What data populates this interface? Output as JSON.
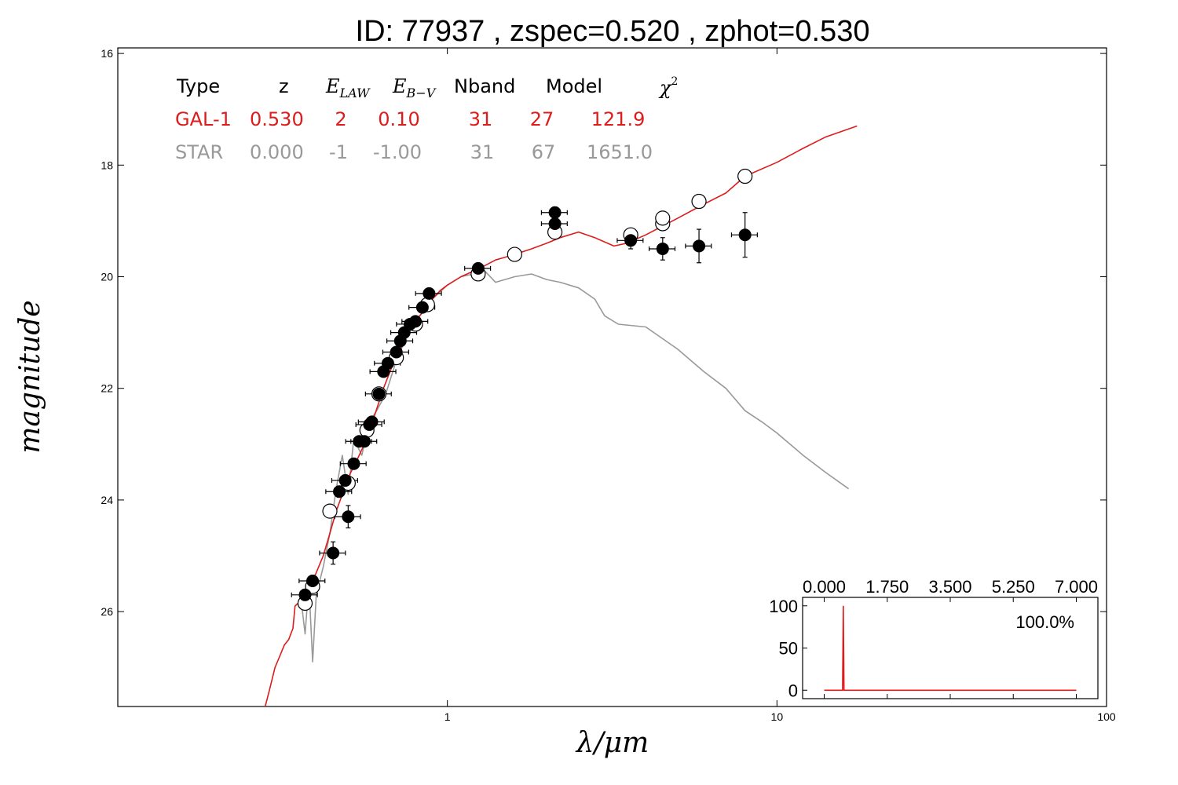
{
  "chart_data": {
    "type": "scatter",
    "title": "ID:  77937 , zspec=0.520 , zphot=0.530",
    "xlabel": "λ/μm",
    "ylabel": "magnitude",
    "x_scale": "log",
    "xlim": [
      0.1,
      100
    ],
    "ylim": [
      27.7,
      15.9
    ],
    "y_inverted": true,
    "x_ticks": [
      {
        "v": 1,
        "label": "1"
      },
      {
        "v": 10,
        "label": "10"
      },
      {
        "v": 100,
        "label": "100"
      }
    ],
    "y_ticks": [
      {
        "v": 16,
        "label": "16"
      },
      {
        "v": 18,
        "label": "18"
      },
      {
        "v": 20,
        "label": "20"
      },
      {
        "v": 22,
        "label": "22"
      },
      {
        "v": 24,
        "label": "24"
      },
      {
        "v": 26,
        "label": "26"
      }
    ],
    "table": {
      "headers": [
        "Type",
        "z",
        "E_LAW",
        "E_B−V",
        "Nband",
        "Model",
        "χ²"
      ],
      "rows": [
        {
          "name": "GAL-1",
          "color": "#dd1c1c",
          "cells": [
            "GAL-1",
            "0.530",
            "2",
            "0.10",
            "31",
            "27",
            "121.9"
          ]
        },
        {
          "name": "STAR",
          "color": "#999999",
          "cells": [
            "STAR",
            "0.000",
            "-1",
            "-1.00",
            "31",
            "67",
            "1651.0"
          ]
        }
      ]
    },
    "series": [
      {
        "name": "GAL-1",
        "kind": "line",
        "color": "#dd1c1c",
        "points": [
          [
            0.28,
            27.7
          ],
          [
            0.29,
            27.35
          ],
          [
            0.3,
            27.0
          ],
          [
            0.31,
            26.8
          ],
          [
            0.32,
            26.6
          ],
          [
            0.33,
            26.5
          ],
          [
            0.34,
            26.3
          ],
          [
            0.345,
            25.9
          ],
          [
            0.36,
            25.8
          ],
          [
            0.37,
            25.75
          ],
          [
            0.38,
            25.6
          ],
          [
            0.4,
            25.3
          ],
          [
            0.42,
            25.0
          ],
          [
            0.44,
            24.6
          ],
          [
            0.46,
            24.2
          ],
          [
            0.48,
            23.9
          ],
          [
            0.5,
            23.6
          ],
          [
            0.53,
            23.3
          ],
          [
            0.56,
            23.0
          ],
          [
            0.6,
            22.5
          ],
          [
            0.64,
            22.0
          ],
          [
            0.68,
            21.6
          ],
          [
            0.72,
            21.3
          ],
          [
            0.76,
            21.0
          ],
          [
            0.8,
            20.8
          ],
          [
            0.85,
            20.6
          ],
          [
            0.9,
            20.4
          ],
          [
            0.95,
            20.25
          ],
          [
            1.0,
            20.15
          ],
          [
            1.1,
            20.0
          ],
          [
            1.2,
            19.9
          ],
          [
            1.3,
            19.8
          ],
          [
            1.4,
            19.7
          ],
          [
            1.6,
            19.6
          ],
          [
            1.8,
            19.5
          ],
          [
            2.0,
            19.4
          ],
          [
            2.2,
            19.3
          ],
          [
            2.5,
            19.2
          ],
          [
            2.8,
            19.3
          ],
          [
            3.2,
            19.45
          ],
          [
            3.5,
            19.4
          ],
          [
            4.0,
            19.25
          ],
          [
            5.0,
            18.95
          ],
          [
            6.0,
            18.7
          ],
          [
            7.0,
            18.5
          ],
          [
            8.0,
            18.2
          ],
          [
            10.0,
            17.95
          ],
          [
            12.0,
            17.7
          ],
          [
            14.0,
            17.5
          ],
          [
            17.5,
            17.3
          ]
        ]
      },
      {
        "name": "STAR",
        "kind": "line",
        "color": "#999999",
        "points": [
          [
            0.36,
            25.8
          ],
          [
            0.37,
            26.4
          ],
          [
            0.38,
            25.5
          ],
          [
            0.39,
            26.9
          ],
          [
            0.4,
            25.7
          ],
          [
            0.42,
            25.2
          ],
          [
            0.44,
            24.6
          ],
          [
            0.46,
            23.8
          ],
          [
            0.48,
            23.2
          ],
          [
            0.5,
            23.9
          ],
          [
            0.52,
            22.9
          ],
          [
            0.55,
            23.2
          ],
          [
            0.58,
            22.6
          ],
          [
            0.61,
            22.4
          ],
          [
            0.65,
            22.1
          ],
          [
            0.7,
            21.5
          ],
          [
            0.75,
            21.1
          ],
          [
            0.8,
            20.8
          ],
          [
            0.85,
            20.6
          ],
          [
            0.9,
            20.4
          ],
          [
            1.0,
            20.15
          ],
          [
            1.1,
            20.0
          ],
          [
            1.2,
            19.95
          ],
          [
            1.3,
            19.9
          ],
          [
            1.4,
            20.1
          ],
          [
            1.6,
            20.0
          ],
          [
            1.8,
            19.95
          ],
          [
            2.0,
            20.05
          ],
          [
            2.2,
            20.1
          ],
          [
            2.5,
            20.2
          ],
          [
            2.8,
            20.4
          ],
          [
            3.0,
            20.7
          ],
          [
            3.3,
            20.85
          ],
          [
            4.0,
            20.9
          ],
          [
            5.0,
            21.3
          ],
          [
            6.0,
            21.7
          ],
          [
            7.0,
            22.0
          ],
          [
            8.0,
            22.4
          ],
          [
            9.0,
            22.6
          ],
          [
            10.0,
            22.8
          ],
          [
            12.0,
            23.2
          ],
          [
            14.0,
            23.5
          ],
          [
            16.5,
            23.8
          ]
        ]
      },
      {
        "name": "observed",
        "kind": "points_filled",
        "points": [
          [
            0.37,
            25.7
          ],
          [
            0.39,
            25.45
          ],
          [
            0.45,
            24.95
          ],
          [
            0.47,
            23.85
          ],
          [
            0.49,
            23.65
          ],
          [
            0.5,
            24.3
          ],
          [
            0.52,
            23.35
          ],
          [
            0.54,
            22.95
          ],
          [
            0.56,
            22.95
          ],
          [
            0.58,
            22.65
          ],
          [
            0.59,
            22.6
          ],
          [
            0.62,
            22.1
          ],
          [
            0.64,
            21.7
          ],
          [
            0.66,
            21.55
          ],
          [
            0.7,
            21.35
          ],
          [
            0.72,
            21.15
          ],
          [
            0.74,
            21.0
          ],
          [
            0.77,
            20.85
          ],
          [
            0.8,
            20.8
          ],
          [
            0.84,
            20.55
          ],
          [
            0.88,
            20.3
          ],
          [
            1.24,
            19.85
          ],
          [
            2.12,
            18.85
          ],
          [
            2.12,
            19.05
          ],
          [
            3.6,
            19.35
          ],
          [
            4.5,
            19.5
          ],
          [
            5.8,
            19.45
          ],
          [
            8.0,
            19.25
          ]
        ],
        "y_err": [
          [
            0.37,
            0.1
          ],
          [
            0.39,
            0.1
          ],
          [
            0.45,
            0.2
          ],
          [
            0.47,
            0.1
          ],
          [
            0.49,
            0.1
          ],
          [
            0.5,
            0.2
          ],
          [
            0.52,
            0.05
          ],
          [
            0.54,
            0.05
          ],
          [
            0.56,
            0.05
          ],
          [
            0.58,
            0.05
          ],
          [
            0.59,
            0.05
          ],
          [
            0.62,
            0.05
          ],
          [
            0.64,
            0.05
          ],
          [
            0.66,
            0.05
          ],
          [
            0.7,
            0.05
          ],
          [
            0.72,
            0.05
          ],
          [
            0.74,
            0.05
          ],
          [
            0.77,
            0.05
          ],
          [
            0.8,
            0.05
          ],
          [
            0.84,
            0.05
          ],
          [
            0.88,
            0.05
          ],
          [
            1.24,
            0.05
          ],
          [
            2.12,
            0.1
          ],
          [
            2.12,
            0.1
          ],
          [
            3.6,
            0.15
          ],
          [
            4.5,
            0.2
          ],
          [
            5.8,
            0.3
          ],
          [
            8.0,
            0.4
          ]
        ],
        "x_err_frac": 0.09
      },
      {
        "name": "model_magnitudes",
        "kind": "points_open",
        "points": [
          [
            0.37,
            25.85
          ],
          [
            0.39,
            25.55
          ],
          [
            0.44,
            24.2
          ],
          [
            0.5,
            23.7
          ],
          [
            0.57,
            22.75
          ],
          [
            0.62,
            22.1
          ],
          [
            0.7,
            21.45
          ],
          [
            0.8,
            20.85
          ],
          [
            0.87,
            20.5
          ],
          [
            1.24,
            19.95
          ],
          [
            1.6,
            19.6
          ],
          [
            2.12,
            19.2
          ],
          [
            3.6,
            19.25
          ],
          [
            4.5,
            19.05
          ],
          [
            4.5,
            18.95
          ],
          [
            5.8,
            18.65
          ],
          [
            8.0,
            18.2
          ]
        ]
      }
    ],
    "inset": {
      "type": "line",
      "color": "#dd1c1c",
      "xlim": [
        -0.6,
        7.6
      ],
      "ylim": [
        -10,
        110
      ],
      "x_ticks": [
        {
          "v": 0,
          "label": "0.000"
        },
        {
          "v": 1.75,
          "label": "1.750"
        },
        {
          "v": 3.5,
          "label": "3.500"
        },
        {
          "v": 5.25,
          "label": "5.250"
        },
        {
          "v": 7,
          "label": "7.000"
        }
      ],
      "y_ticks": [
        {
          "v": 0,
          "label": "0"
        },
        {
          "v": 50,
          "label": "50"
        },
        {
          "v": 100,
          "label": "100"
        }
      ],
      "annotation": "100.0%",
      "points": [
        [
          0.0,
          0
        ],
        [
          0.51,
          0
        ],
        [
          0.53,
          100
        ],
        [
          0.55,
          0
        ],
        [
          7.0,
          0
        ]
      ]
    }
  }
}
